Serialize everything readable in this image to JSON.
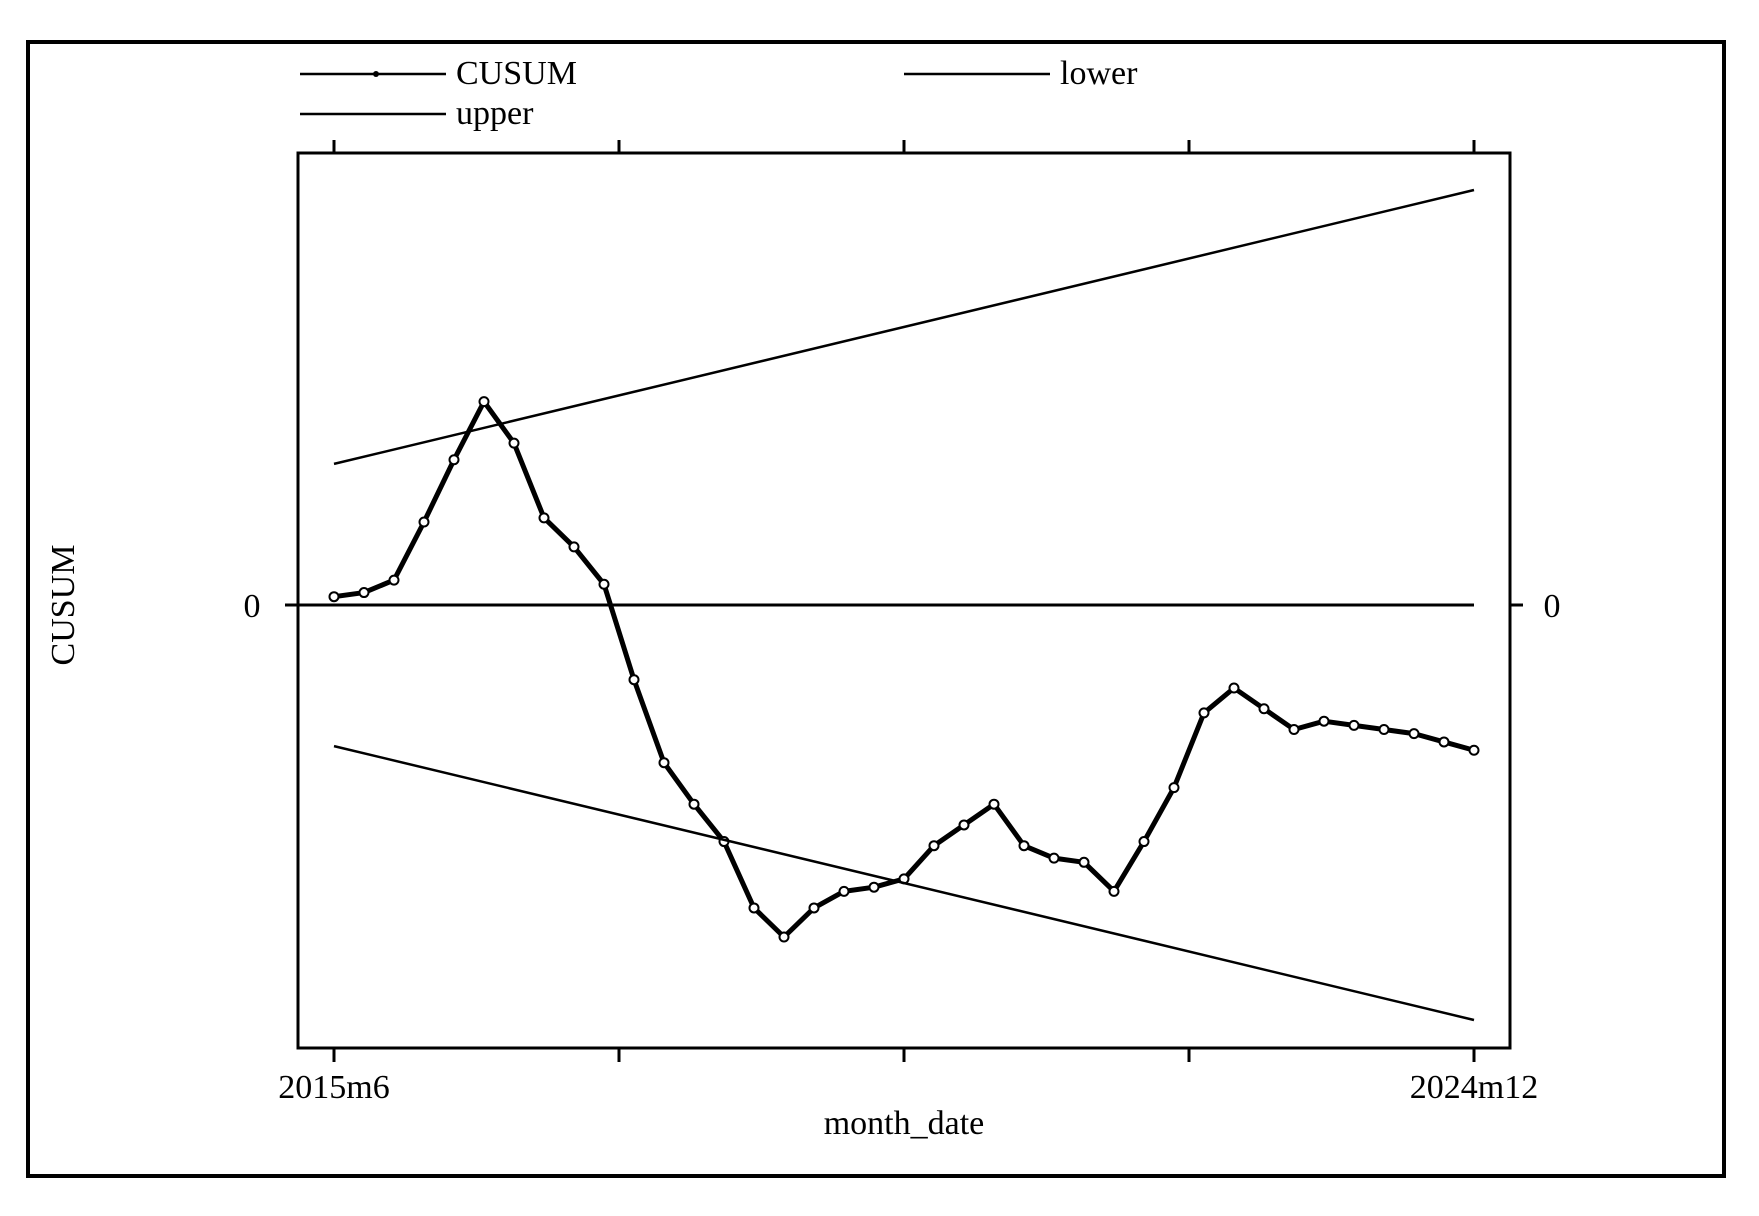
{
  "chart_data": {
    "type": "line",
    "title": "",
    "xlabel": "month_date",
    "ylabel": "CUSUM",
    "x_start": "2015m6",
    "x_end": "2024m12",
    "x_tick_labels": [
      "2015m6",
      "2024m12"
    ],
    "y_tick_labels": [
      "0"
    ],
    "ylim": [
      -0.98,
      1.08
    ],
    "grid": false,
    "legend": {
      "placement": "top",
      "entries": [
        "CUSUM",
        "lower",
        "upper"
      ]
    },
    "series": [
      {
        "name": "CUSUM",
        "x": [
          0,
          3,
          6,
          9,
          12,
          15,
          18,
          21,
          24,
          27,
          30,
          33,
          36,
          39,
          42,
          45,
          48,
          51,
          54,
          57,
          60,
          63,
          66,
          69,
          72,
          75,
          78,
          81,
          84,
          87,
          90,
          93,
          96,
          99,
          102,
          105,
          108,
          111,
          114
        ],
        "y": [
          0.02,
          0.03,
          0.06,
          0.2,
          0.35,
          0.49,
          0.39,
          0.21,
          0.14,
          0.05,
          -0.18,
          -0.38,
          -0.48,
          -0.57,
          -0.73,
          -0.8,
          -0.73,
          -0.69,
          -0.68,
          -0.66,
          -0.58,
          -0.53,
          -0.48,
          -0.58,
          -0.61,
          -0.62,
          -0.69,
          -0.57,
          -0.44,
          -0.26,
          -0.2,
          -0.25,
          -0.3,
          -0.28,
          -0.29,
          -0.3,
          -0.31,
          -0.33,
          -0.35
        ]
      },
      {
        "name": "lower",
        "x": [
          0,
          114
        ],
        "y": [
          -0.34,
          -1.0
        ]
      },
      {
        "name": "upper",
        "x": [
          0,
          114
        ],
        "y": [
          0.34,
          1.0
        ]
      }
    ],
    "reference_line_y": 0
  }
}
